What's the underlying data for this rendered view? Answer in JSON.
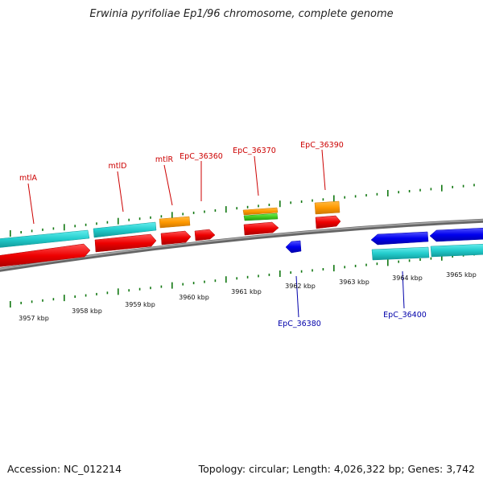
{
  "title": "Erwinia pyrifoliae Ep1/96 chromosome, complete genome",
  "footer": {
    "accession": "Accession: NC_012214",
    "summary": "Topology: circular; Length: 4,026,322 bp; Genes: 3,742"
  },
  "ruler_labels": [
    "3957 kbp",
    "3958 kbp",
    "3959 kbp",
    "3960 kbp",
    "3961 kbp",
    "3962 kbp",
    "3963 kbp",
    "3964 kbp",
    "3965 kbp"
  ],
  "genes": {
    "mtlA": "mtlA",
    "mtlD": "mtlD",
    "mtlR": "mtlR",
    "ep36360": "EpC_36360",
    "ep36370": "EpC_36370",
    "ep36390": "EpC_36390",
    "ep36380": "EpC_36380",
    "ep36400": "EpC_36400"
  },
  "colors": {
    "forward_label": "#cc0000",
    "reverse_label": "#0000aa",
    "cds_forward": "#ee0000",
    "cds_reverse": "#0000ee",
    "gene_cyan": "#22cccc",
    "gene_orange": "#ff9900",
    "gene_green": "#44cc22",
    "backbone": "#777777",
    "tick": "#117711"
  }
}
